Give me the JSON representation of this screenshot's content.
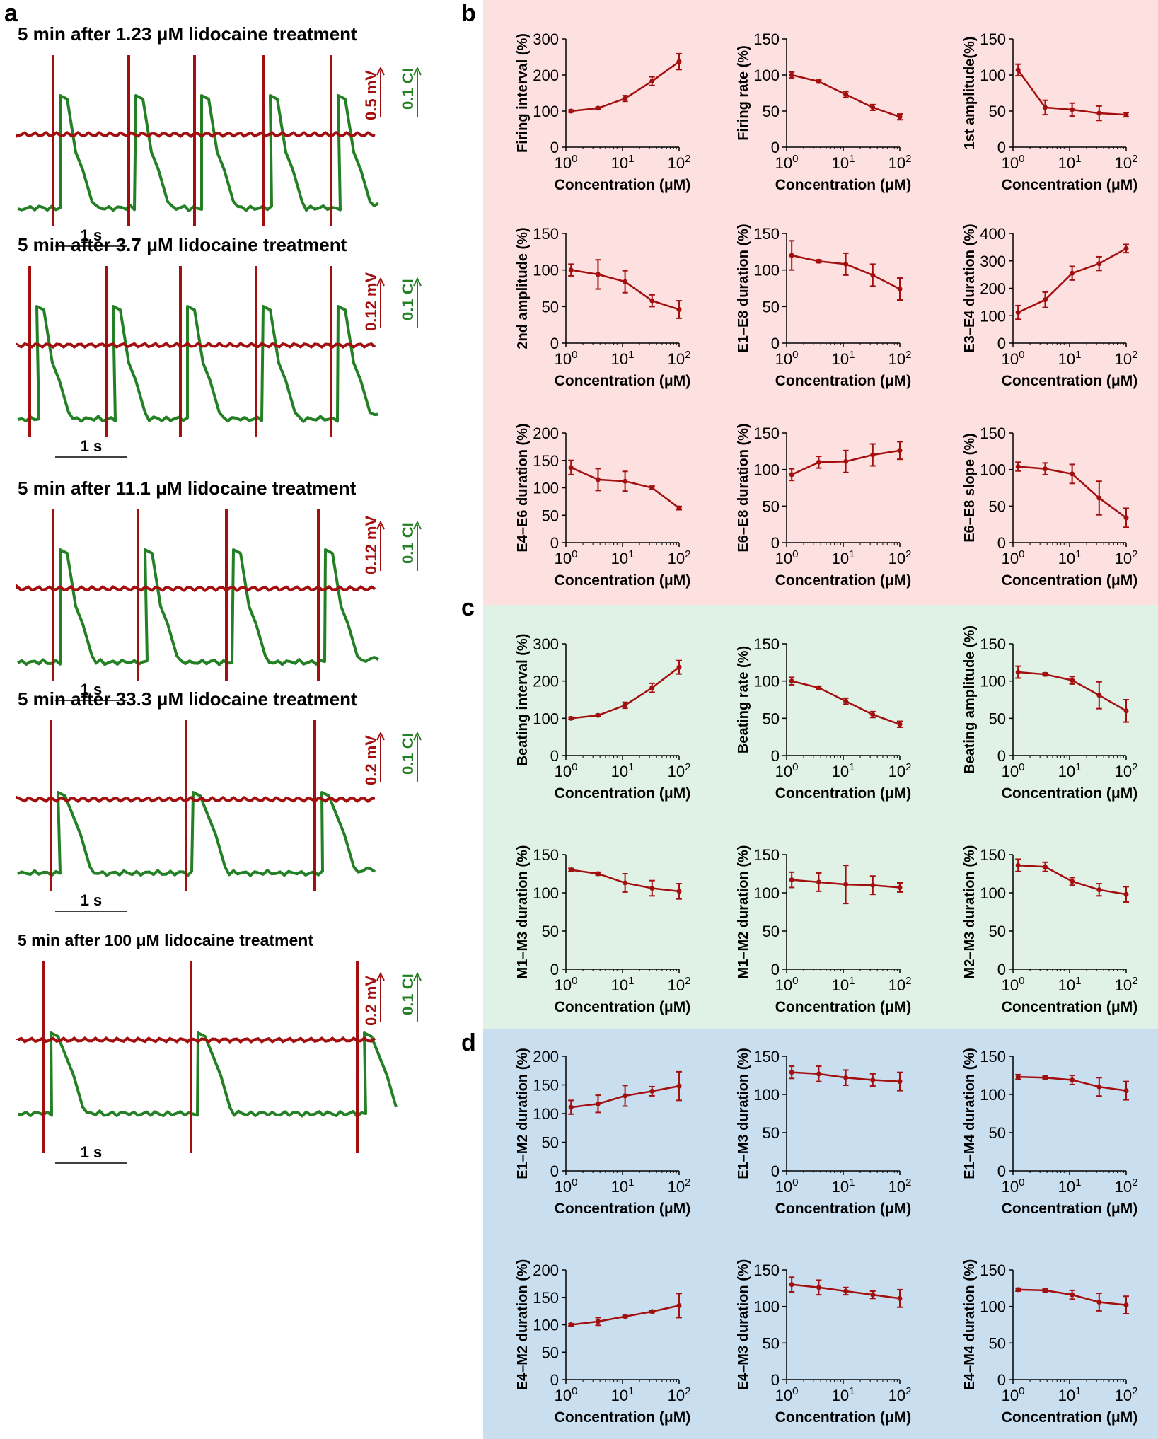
{
  "panel_labels": {
    "a": "a",
    "b": "b",
    "c": "c",
    "d": "d"
  },
  "colors": {
    "ecg_red": "#a30f0f",
    "ici_green": "#248024",
    "bg_b": "#fde0e0",
    "bg_c": "#dff2e5",
    "bg_d": "#c9dff0"
  },
  "traces": [
    {
      "title": "5 min after 1.23 μM lidocaine treatment",
      "mv_label": "0.5 mV",
      "ci_label": "0.1 CI",
      "time_label": "1 s"
    },
    {
      "title": "5 min after 3.7 μM lidocaine treatment",
      "mv_label": "0.12 mV",
      "ci_label": "0.1 CI",
      "time_label": "1 s"
    },
    {
      "title": "5 min after 11.1 μM lidocaine treatment",
      "mv_label": "0.12 mV",
      "ci_label": "0.1 CI",
      "time_label": "1 s"
    },
    {
      "title": "5 min after 33.3 μM lidocaine treatment",
      "mv_label": "0.2 mV",
      "ci_label": "0.1 CI",
      "time_label": "1 s"
    },
    {
      "title": "5 min after 100 μM lidocaine treatment",
      "mv_label": "0.2 mV",
      "ci_label": "0.1 CI",
      "time_label": "1 s"
    }
  ],
  "chart_data": [
    {
      "type": "line",
      "panel": "b",
      "ylabel": "Firing interval (%)",
      "xlabel": "Concentration (μM)",
      "x": [
        1.23,
        3.7,
        11.1,
        33.3,
        100
      ],
      "values": [
        100,
        108,
        135,
        183,
        237
      ],
      "errors": [
        3,
        3,
        8,
        12,
        22
      ],
      "ylim": [
        0,
        300
      ],
      "yticks": [
        0,
        100,
        200,
        300
      ]
    },
    {
      "type": "line",
      "panel": "b",
      "ylabel": "Firing rate (%)",
      "xlabel": "Concentration (μM)",
      "x": [
        1.23,
        3.7,
        11.1,
        33.3,
        100
      ],
      "values": [
        100,
        91,
        73,
        55,
        42
      ],
      "errors": [
        4,
        2,
        4,
        4,
        4
      ],
      "ylim": [
        0,
        150
      ],
      "yticks": [
        0,
        50,
        100,
        150
      ]
    },
    {
      "type": "line",
      "panel": "b",
      "ylabel": "1st amplitude(%)",
      "xlabel": "Concentration (μM)",
      "x": [
        1.23,
        3.7,
        11.1,
        33.3,
        100
      ],
      "values": [
        107,
        55,
        52,
        47,
        45
      ],
      "errors": [
        8,
        10,
        9,
        10,
        3
      ],
      "ylim": [
        0,
        150
      ],
      "yticks": [
        0,
        50,
        100,
        150
      ]
    },
    {
      "type": "line",
      "panel": "b",
      "ylabel": "2nd amplitude (%)",
      "xlabel": "Concentration (μM)",
      "x": [
        1.23,
        3.7,
        11.1,
        33.3,
        100
      ],
      "values": [
        100,
        94,
        84,
        58,
        46
      ],
      "errors": [
        8,
        20,
        15,
        8,
        12
      ],
      "ylim": [
        0,
        150
      ],
      "yticks": [
        0,
        50,
        100,
        150
      ]
    },
    {
      "type": "line",
      "panel": "b",
      "ylabel": "E1–E8 duration (%)",
      "xlabel": "Concentration (μM)",
      "x": [
        1.23,
        3.7,
        11.1,
        33.3,
        100
      ],
      "values": [
        120,
        112,
        108,
        93,
        74
      ],
      "errors": [
        20,
        2,
        15,
        15,
        15
      ],
      "ylim": [
        0,
        150
      ],
      "yticks": [
        0,
        50,
        100,
        150
      ]
    },
    {
      "type": "line",
      "panel": "b",
      "ylabel": "E3–E4 duration (%)",
      "xlabel": "Concentration (μM)",
      "x": [
        1.23,
        3.7,
        11.1,
        33.3,
        100
      ],
      "values": [
        112,
        158,
        255,
        290,
        345
      ],
      "errors": [
        25,
        28,
        25,
        25,
        15
      ],
      "ylim": [
        0,
        400
      ],
      "yticks": [
        0,
        100,
        200,
        300,
        400
      ]
    },
    {
      "type": "line",
      "panel": "b",
      "ylabel": "E4–E6 duration (%)",
      "xlabel": "Concentration (μM)",
      "x": [
        1.23,
        3.7,
        11.1,
        33.3,
        100
      ],
      "values": [
        137,
        115,
        112,
        100,
        63
      ],
      "errors": [
        13,
        20,
        18,
        3,
        3
      ],
      "ylim": [
        0,
        200
      ],
      "yticks": [
        0,
        50,
        100,
        150,
        200
      ]
    },
    {
      "type": "line",
      "panel": "b",
      "ylabel": "E6–E8 duration (%)",
      "xlabel": "Concentration (μM)",
      "x": [
        1.23,
        3.7,
        11.1,
        33.3,
        100
      ],
      "values": [
        93,
        110,
        111,
        120,
        126
      ],
      "errors": [
        8,
        8,
        15,
        15,
        12
      ],
      "ylim": [
        0,
        150
      ],
      "yticks": [
        0,
        50,
        100,
        150
      ]
    },
    {
      "type": "line",
      "panel": "b",
      "ylabel": "E6–E8 slope (%)",
      "xlabel": "Concentration (μM)",
      "x": [
        1.23,
        3.7,
        11.1,
        33.3,
        100
      ],
      "values": [
        104,
        101,
        94,
        61,
        34
      ],
      "errors": [
        6,
        8,
        13,
        23,
        13
      ],
      "ylim": [
        0,
        150
      ],
      "yticks": [
        0,
        50,
        100,
        150
      ]
    },
    {
      "type": "line",
      "panel": "c",
      "ylabel": "Beating interval (%)",
      "xlabel": "Concentration (μM)",
      "x": [
        1.23,
        3.7,
        11.1,
        33.3,
        100
      ],
      "values": [
        100,
        108,
        135,
        182,
        237
      ],
      "errors": [
        3,
        3,
        8,
        12,
        18
      ],
      "ylim": [
        0,
        300
      ],
      "yticks": [
        0,
        100,
        200,
        300
      ]
    },
    {
      "type": "line",
      "panel": "c",
      "ylabel": "Beating rate (%)",
      "xlabel": "Concentration (μM)",
      "x": [
        1.23,
        3.7,
        11.1,
        33.3,
        100
      ],
      "values": [
        100,
        91,
        73,
        55,
        42
      ],
      "errors": [
        5,
        2,
        4,
        4,
        4
      ],
      "ylim": [
        0,
        150
      ],
      "yticks": [
        0,
        50,
        100,
        150
      ]
    },
    {
      "type": "line",
      "panel": "c",
      "ylabel": "Beating amplitude (%)",
      "xlabel": "Concentration (μM)",
      "x": [
        1.23,
        3.7,
        11.1,
        33.3,
        100
      ],
      "values": [
        112,
        109,
        101,
        81,
        60
      ],
      "errors": [
        8,
        2,
        5,
        18,
        15
      ],
      "ylim": [
        0,
        150
      ],
      "yticks": [
        0,
        50,
        100,
        150
      ]
    },
    {
      "type": "line",
      "panel": "c",
      "ylabel": "M1–M3 duration (%)",
      "xlabel": "Concentration (μM)",
      "x": [
        1.23,
        3.7,
        11.1,
        33.3,
        100
      ],
      "values": [
        130,
        125,
        113,
        106,
        102
      ],
      "errors": [
        2,
        2,
        12,
        10,
        10
      ],
      "ylim": [
        0,
        150
      ],
      "yticks": [
        0,
        50,
        100,
        150
      ]
    },
    {
      "type": "line",
      "panel": "c",
      "ylabel": "M1–M2 duration (%)",
      "xlabel": "Concentration (μM)",
      "x": [
        1.23,
        3.7,
        11.1,
        33.3,
        100
      ],
      "values": [
        117,
        114,
        111,
        110,
        107
      ],
      "errors": [
        10,
        12,
        25,
        12,
        6
      ],
      "ylim": [
        0,
        150
      ],
      "yticks": [
        0,
        50,
        100,
        150
      ]
    },
    {
      "type": "line",
      "panel": "c",
      "ylabel": "M2–M3 duration (%)",
      "xlabel": "Concentration (μM)",
      "x": [
        1.23,
        3.7,
        11.1,
        33.3,
        100
      ],
      "values": [
        136,
        134,
        115,
        104,
        98
      ],
      "errors": [
        8,
        6,
        5,
        8,
        10
      ],
      "ylim": [
        0,
        150
      ],
      "yticks": [
        0,
        50,
        100,
        150
      ]
    },
    {
      "type": "line",
      "panel": "d",
      "ylabel": "E1–M2 duration (%)",
      "xlabel": "Concentration (μM)",
      "x": [
        1.23,
        3.7,
        11.1,
        33.3,
        100
      ],
      "values": [
        111,
        117,
        131,
        139,
        148
      ],
      "errors": [
        12,
        15,
        18,
        8,
        25
      ],
      "ylim": [
        0,
        200
      ],
      "yticks": [
        0,
        50,
        100,
        150,
        200
      ]
    },
    {
      "type": "line",
      "panel": "d",
      "ylabel": "E1–M3 duration (%)",
      "xlabel": "Concentration (μM)",
      "x": [
        1.23,
        3.7,
        11.1,
        33.3,
        100
      ],
      "values": [
        129,
        127,
        122,
        119,
        117
      ],
      "errors": [
        8,
        10,
        10,
        8,
        12
      ],
      "ylim": [
        0,
        150
      ],
      "yticks": [
        0,
        50,
        100,
        150
      ]
    },
    {
      "type": "line",
      "panel": "d",
      "ylabel": "E1–M4 duration (%)",
      "xlabel": "Concentration (μM)",
      "x": [
        1.23,
        3.7,
        11.1,
        33.3,
        100
      ],
      "values": [
        123,
        122,
        119,
        110,
        105
      ],
      "errors": [
        3,
        2,
        6,
        12,
        12
      ],
      "ylim": [
        0,
        150
      ],
      "yticks": [
        0,
        50,
        100,
        150
      ]
    },
    {
      "type": "line",
      "panel": "d",
      "ylabel": "E4–M2 duration (%)",
      "xlabel": "Concentration (μM)",
      "x": [
        1.23,
        3.7,
        11.1,
        33.3,
        100
      ],
      "values": [
        100,
        106,
        115,
        124,
        135
      ],
      "errors": [
        2,
        7,
        2,
        2,
        22
      ],
      "ylim": [
        0,
        200
      ],
      "yticks": [
        0,
        50,
        100,
        150,
        200
      ]
    },
    {
      "type": "line",
      "panel": "d",
      "ylabel": "E4–M3 duration (%)",
      "xlabel": "Concentration (μM)",
      "x": [
        1.23,
        3.7,
        11.1,
        33.3,
        100
      ],
      "values": [
        130,
        126,
        121,
        116,
        111
      ],
      "errors": [
        10,
        10,
        5,
        5,
        12
      ],
      "ylim": [
        0,
        150
      ],
      "yticks": [
        0,
        50,
        100,
        150
      ]
    },
    {
      "type": "line",
      "panel": "d",
      "ylabel": "E4–M4 duration (%)",
      "xlabel": "Concentration (μM)",
      "x": [
        1.23,
        3.7,
        11.1,
        33.3,
        100
      ],
      "values": [
        123,
        122,
        116,
        106,
        102
      ],
      "errors": [
        2,
        2,
        6,
        12,
        12
      ],
      "ylim": [
        0,
        150
      ],
      "yticks": [
        0,
        50,
        100,
        150
      ]
    }
  ]
}
